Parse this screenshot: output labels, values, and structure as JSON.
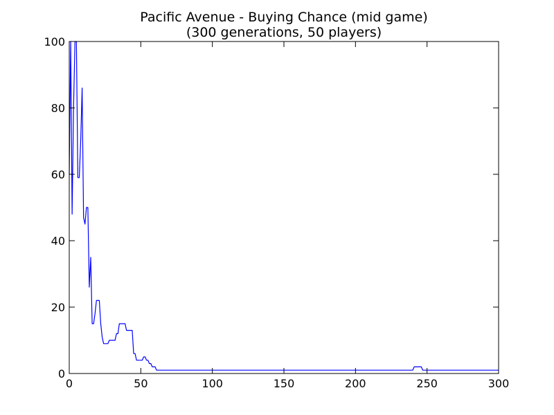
{
  "chart_data": {
    "type": "line",
    "title": "Pacific Avenue - Buying Chance (mid game)",
    "subtitle": "(300 generations, 50 players)",
    "xlabel": "",
    "ylabel": "",
    "xlim": [
      0,
      300
    ],
    "ylim": [
      0,
      100
    ],
    "xticks": [
      "0",
      "50",
      "100",
      "150",
      "200",
      "250",
      "300"
    ],
    "yticks": [
      "0",
      "20",
      "40",
      "60",
      "80",
      "100"
    ],
    "grid": false,
    "legend": "none",
    "series": [
      {
        "color": "#0000ff",
        "x": [
          0,
          1,
          2,
          3,
          4,
          5,
          6,
          7,
          8,
          9,
          10,
          11,
          12,
          13,
          14,
          15,
          16,
          17,
          18,
          19,
          20,
          21,
          22,
          23,
          24,
          25,
          26,
          27,
          28,
          29,
          30,
          31,
          32,
          33,
          34,
          35,
          36,
          37,
          38,
          39,
          40,
          41,
          42,
          43,
          44,
          45,
          46,
          47,
          48,
          49,
          50,
          51,
          52,
          53,
          54,
          55,
          56,
          57,
          58,
          59,
          60,
          61,
          62,
          63,
          65,
          100,
          150,
          200,
          239,
          240,
          241,
          242,
          243,
          244,
          245,
          246,
          247,
          248,
          249,
          250,
          300
        ],
        "y": [
          60,
          100,
          48,
          80,
          100,
          100,
          59,
          59,
          70,
          86,
          47,
          45,
          50,
          50,
          26,
          35,
          15,
          15,
          18,
          22,
          22,
          22,
          15,
          11,
          9,
          9,
          9,
          9,
          10,
          10,
          10,
          10,
          10,
          12,
          12,
          15,
          15,
          15,
          15,
          15,
          13,
          13,
          13,
          13,
          13,
          6,
          6,
          4,
          4,
          4,
          4,
          4,
          5,
          5,
          4,
          4,
          3,
          3,
          2,
          2,
          2,
          1,
          1,
          1,
          1,
          1,
          1,
          1,
          1,
          1,
          2,
          2,
          2,
          2,
          2,
          2,
          1,
          1,
          1,
          1,
          1
        ]
      }
    ]
  }
}
